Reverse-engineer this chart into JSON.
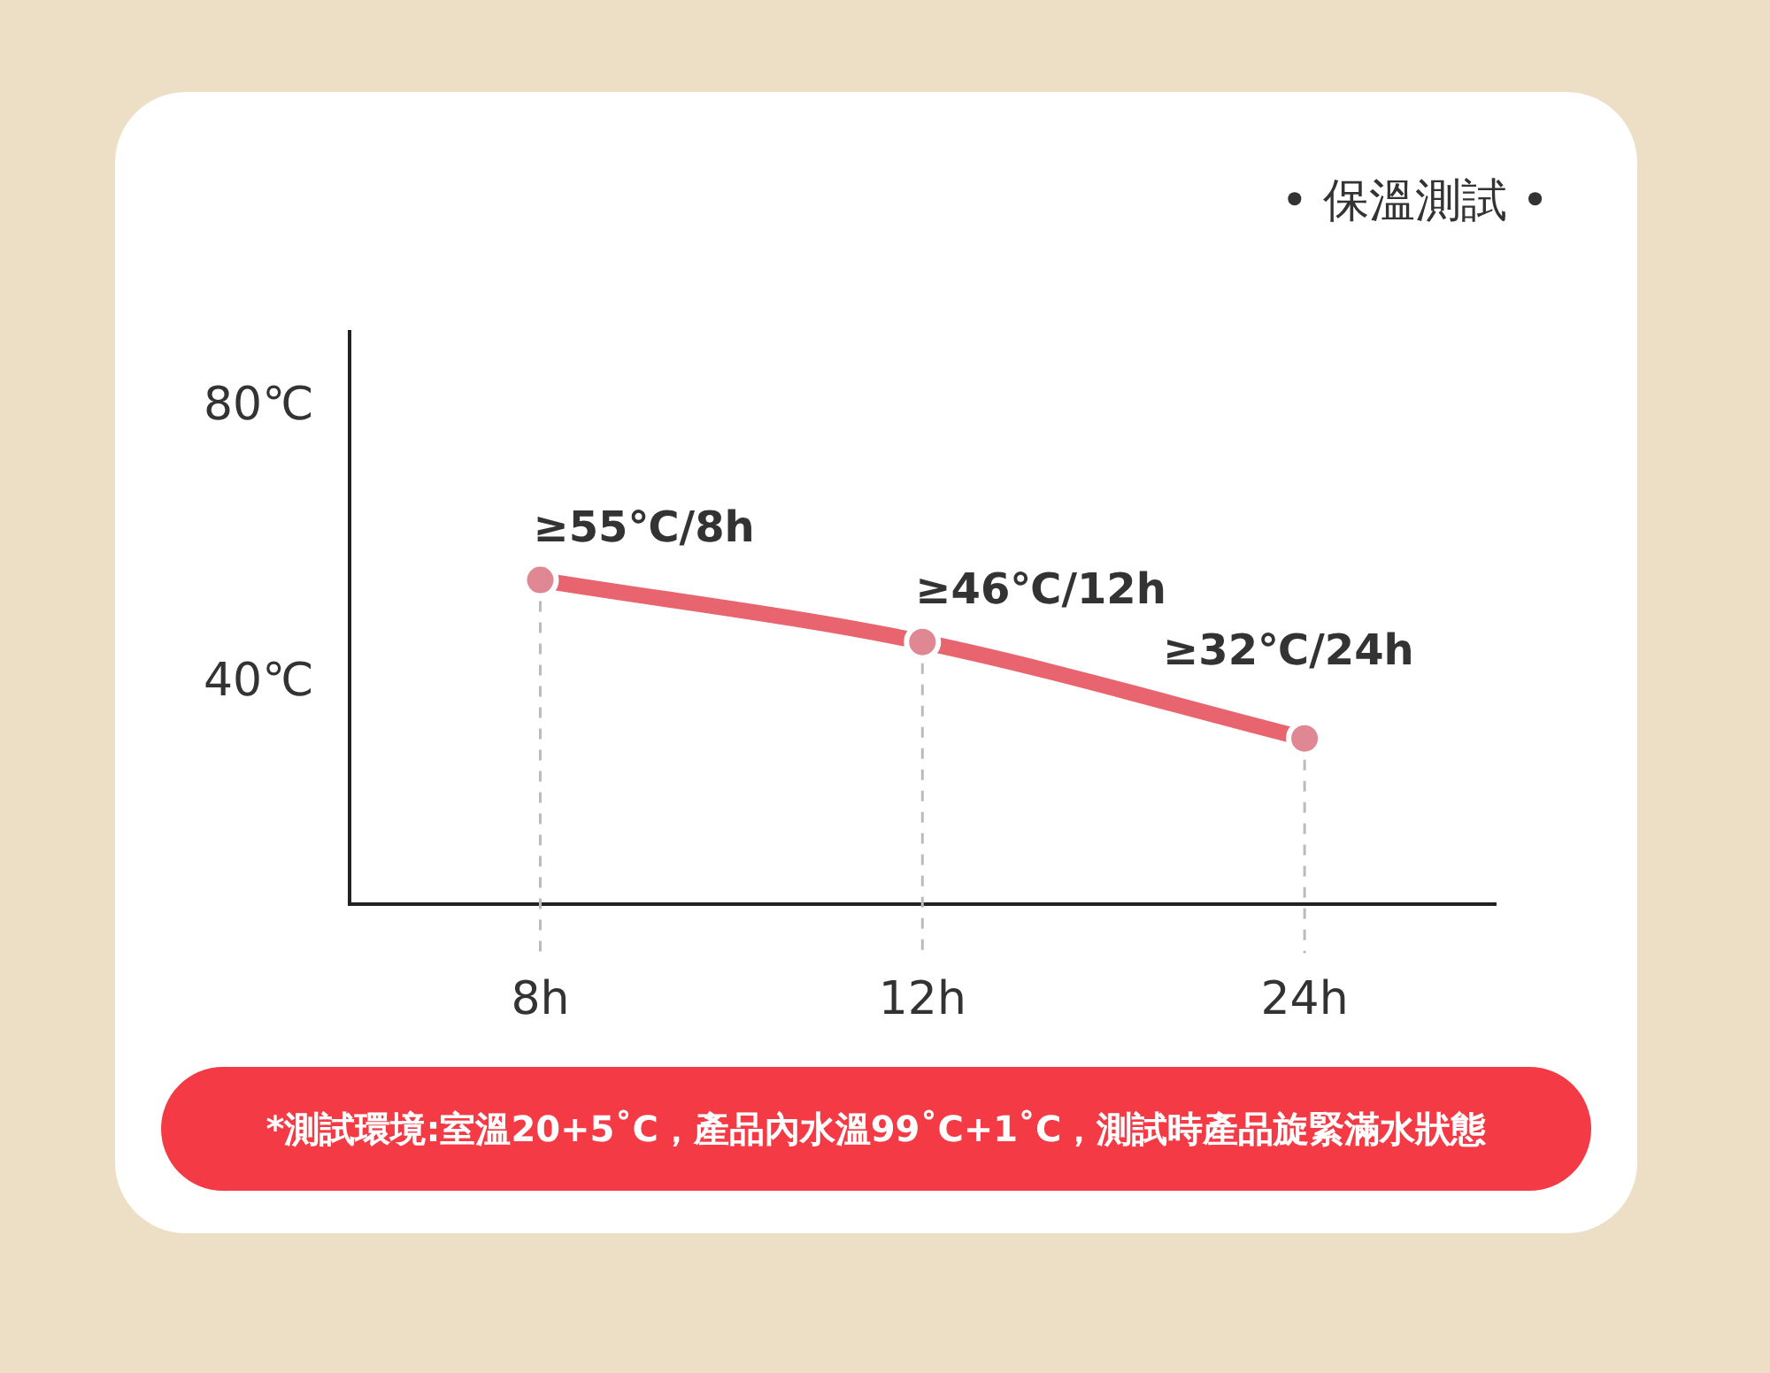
{
  "chart_data": {
    "type": "line",
    "title": "• 保溫測試 •",
    "categories": [
      "8h",
      "12h",
      "24h"
    ],
    "series": [
      {
        "color": "#e8646f",
        "values": [
          55,
          46,
          32
        ],
        "value_labels": [
          "≥55℃/8h",
          "≥46℃/12h",
          "≥32℃/24h"
        ]
      }
    ],
    "ylim": [
      8,
      91
    ],
    "yticks": [
      {
        "value": 80,
        "label": "80℃"
      },
      {
        "value": 40,
        "label": "40℃"
      }
    ],
    "grid": false,
    "legend": false,
    "marker": "circle",
    "line_style": "solid",
    "ref_lines": [
      {
        "axis": "x",
        "value": "8h",
        "color": "#bbbbbb",
        "line_style": "dashed"
      },
      {
        "axis": "x",
        "value": "12h",
        "color": "#bbbbbb",
        "line_style": "dashed"
      },
      {
        "axis": "x",
        "value": "24h",
        "color": "#bbbbbb",
        "line_style": "dashed"
      }
    ],
    "annotations": [
      "*測試環境:室溫20+5˚C，產品內水溫99˚C+1˚C，測試時產品旋緊滿水狀態"
    ]
  }
}
